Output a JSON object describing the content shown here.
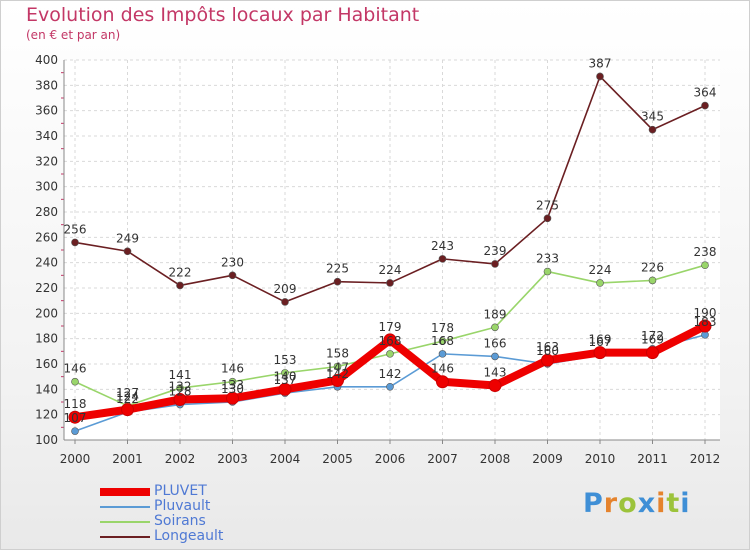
{
  "header": {
    "title": "Evolution des Impôts locaux par Habitant",
    "subtitle": "(en € et par an)"
  },
  "brand": {
    "letters": [
      "P",
      "r",
      "o",
      "x",
      "i",
      "t",
      "i"
    ],
    "colors": [
      "#3f8fd6",
      "#e5832d",
      "#9cc33b",
      "#3f8fd6",
      "#e5832d",
      "#9cc33b",
      "#3f8fd6"
    ]
  },
  "chart_data": {
    "type": "line",
    "title": "Evolution des Impôts locaux par Habitant",
    "subtitle": "(en € et par an)",
    "xlabel": "",
    "ylabel": "",
    "x": [
      2000,
      2001,
      2002,
      2003,
      2004,
      2005,
      2006,
      2007,
      2008,
      2009,
      2010,
      2011,
      2012
    ],
    "x_tick_labels": [
      "2000",
      "2001",
      "2002",
      "2003",
      "2004",
      "2005",
      "2006",
      "2007",
      "2008",
      "2009",
      "2010",
      "2011",
      "2012"
    ],
    "ylim": [
      100,
      400
    ],
    "y_ticks": [
      100,
      120,
      140,
      160,
      180,
      200,
      220,
      240,
      260,
      280,
      300,
      320,
      340,
      360,
      380,
      400
    ],
    "grid": true,
    "legend_position": "bottom-left",
    "series": [
      {
        "name": "PLUVET",
        "color": "#ee0000",
        "emphasis": true,
        "values": [
          118,
          124,
          132,
          133,
          140,
          147,
          179,
          146,
          143,
          163,
          169,
          169,
          190
        ]
      },
      {
        "name": "Pluvault",
        "color": "#5b9bd5",
        "emphasis": false,
        "values": [
          107,
          122,
          128,
          130,
          137,
          142,
          142,
          168,
          166,
          160,
          167,
          172,
          183
        ]
      },
      {
        "name": "Soirans",
        "color": "#99d56a",
        "emphasis": false,
        "values": [
          146,
          127,
          141,
          146,
          153,
          158,
          168,
          178,
          189,
          233,
          224,
          226,
          238
        ]
      },
      {
        "name": "Longeault",
        "color": "#6b1f22",
        "emphasis": false,
        "values": [
          256,
          249,
          222,
          230,
          209,
          225,
          224,
          243,
          239,
          275,
          387,
          345,
          364
        ]
      }
    ]
  }
}
